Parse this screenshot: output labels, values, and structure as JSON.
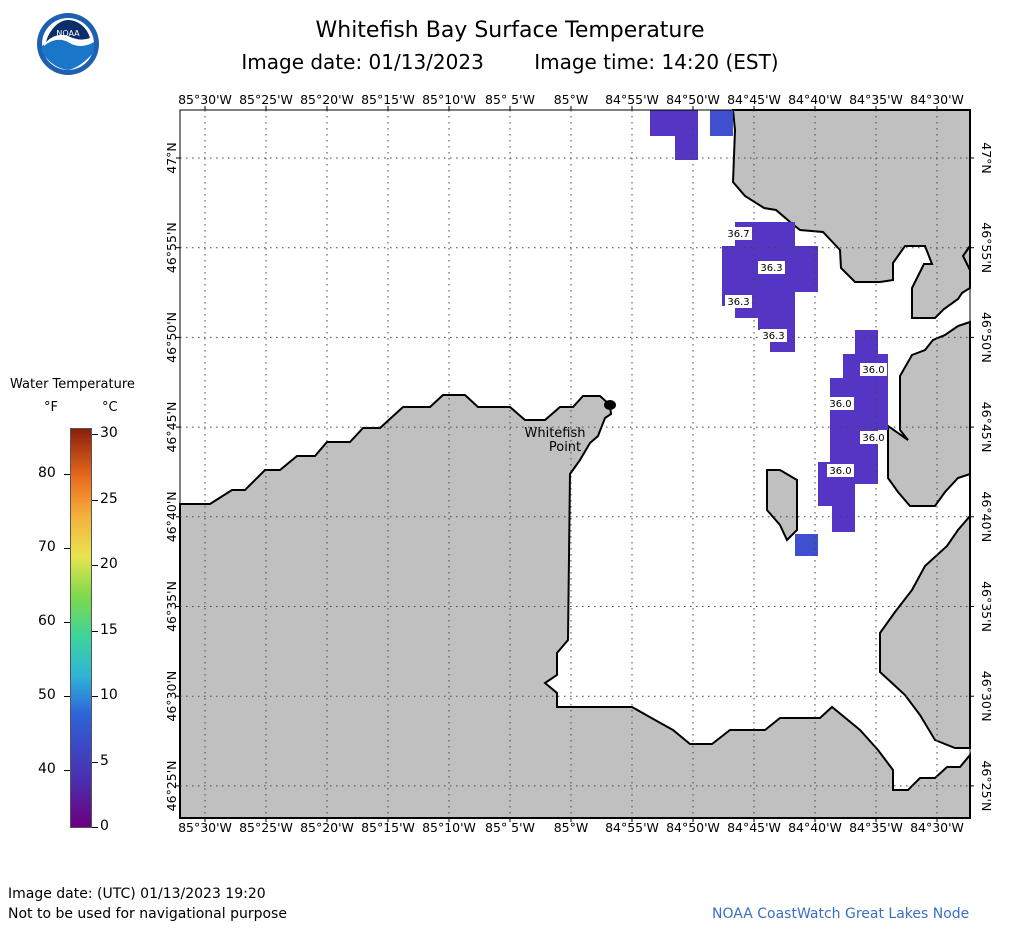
{
  "header": {
    "title": "Whitefish Bay Surface Temperature",
    "image_date": "Image date: 01/13/2023",
    "image_time": "Image time: 14:20 (EST)",
    "logo_text": "NOAA"
  },
  "axes": {
    "lon_labels": [
      "85°30'W",
      "85°25'W",
      "85°20'W",
      "85°15'W",
      "85°10'W",
      "85° 5'W",
      "85°W",
      "84°55'W",
      "84°50'W",
      "84°45'W",
      "84°40'W",
      "84°35'W",
      "84°30'W"
    ],
    "lat_labels": [
      "47°N",
      "46°55'N",
      "46°50'N",
      "46°45'N",
      "46°40'N",
      "46°35'N",
      "46°30'N",
      "46°25'N"
    ]
  },
  "map": {
    "place_label_line1": "Whitefish",
    "place_label_line2": "Point",
    "temperature_labels": [
      "36.7",
      "36.3",
      "36.3",
      "36.3",
      "36.0",
      "36.0",
      "36.0",
      "36.0"
    ],
    "colors": {
      "land": "#c0c0c0",
      "water": "#ffffff",
      "data_purple": "#5535c4",
      "data_blue": "#3f4fd0"
    }
  },
  "colorbar": {
    "title": "Water Temperature",
    "unit_f": "°F",
    "unit_c": "°C",
    "f_labels": [
      "80",
      "70",
      "60",
      "50",
      "40"
    ],
    "c_labels": [
      "30",
      "25",
      "20",
      "15",
      "10",
      "5",
      "0"
    ]
  },
  "footer": {
    "utc_date": "Image date: (UTC) 01/13/2023   19:20",
    "disclaimer": "Not to be used for navigational purpose",
    "credit": "NOAA CoastWatch Great Lakes Node"
  }
}
